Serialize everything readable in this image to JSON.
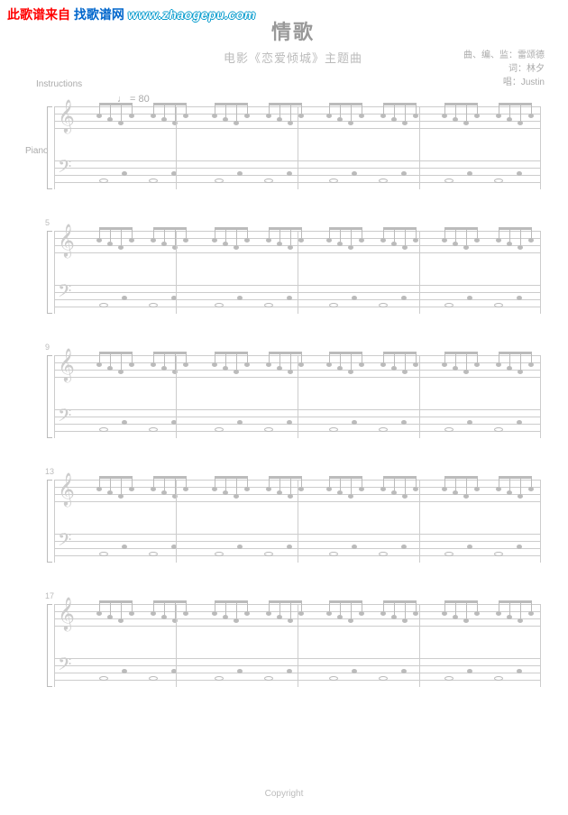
{
  "watermark": {
    "prefix": "此歌谱来自",
    "site": "找歌谱网",
    "url": "www.zhaogepu.com"
  },
  "title": "情歌",
  "subtitle": "电影《恋爱倾城》主题曲",
  "credits": {
    "line1": "曲、编、监：雷颂德",
    "line2": "词：林夕",
    "line3": "唱：Justin"
  },
  "instructions_label": "Instructions",
  "piano_label": "Piano",
  "tempo": "♩ = 80",
  "systems": [
    {
      "measure_start": "",
      "bars": 4
    },
    {
      "measure_start": "5",
      "bars": 4
    },
    {
      "measure_start": "9",
      "bars": 4
    },
    {
      "measure_start": "13",
      "bars": 4
    },
    {
      "measure_start": "17",
      "bars": 4
    }
  ],
  "copyright": "Copyright",
  "styling": {
    "staff_line_color": "#cccccc",
    "note_color": "#bbbbbb",
    "text_color": "#aaaaaa",
    "title_color": "#999999",
    "staff_line_spacing": 8,
    "staff_height": 32,
    "system_spacing": 46
  }
}
